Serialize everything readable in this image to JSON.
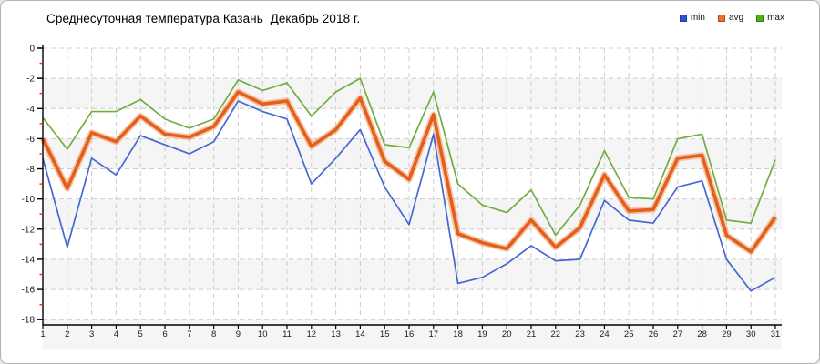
{
  "title": "Среднесуточная температура Казань  Декабрь 2018 г.",
  "legend": {
    "position": "top-right",
    "items": [
      {
        "id": "min",
        "label": "min",
        "swatch": "#2b50d9"
      },
      {
        "id": "avg",
        "label": "avg",
        "swatch": "#ea7322"
      },
      {
        "id": "max",
        "label": "max",
        "swatch": "#4ab410"
      }
    ]
  },
  "chart_data": {
    "type": "line",
    "title": "Среднесуточная температура Казань  Декабрь 2018 г.",
    "xlabel": "",
    "ylabel": "",
    "x": [
      1,
      2,
      3,
      4,
      5,
      6,
      7,
      8,
      9,
      10,
      11,
      12,
      13,
      14,
      15,
      16,
      17,
      18,
      19,
      20,
      21,
      22,
      23,
      24,
      25,
      26,
      27,
      28,
      29,
      30,
      31
    ],
    "ylim": [
      -18,
      0
    ],
    "ytick_step": 2,
    "y_tick_labels": [
      "0",
      "-2",
      "-4",
      "-6",
      "-8",
      "-10",
      "-12",
      "-14",
      "-16",
      "-18"
    ],
    "grid": "dashed-both-axes",
    "background_bands": "alternating 2-degree rows, light gray on odd rows",
    "legend_position": "top-right",
    "series": [
      {
        "name": "min",
        "color": "#4468d1",
        "values": [
          -7.3,
          -13.2,
          -7.3,
          -8.4,
          -5.8,
          -6.4,
          -7.0,
          -6.2,
          -3.5,
          -4.2,
          -4.7,
          -9.0,
          -7.3,
          -5.4,
          -9.2,
          -11.7,
          -5.7,
          -15.6,
          -15.2,
          -14.3,
          -13.1,
          -14.1,
          -14.0,
          -10.1,
          -11.4,
          -11.6,
          -9.2,
          -8.8,
          -14.0,
          -16.1,
          -15.2
        ]
      },
      {
        "name": "avg",
        "color": "#e25f1d",
        "halo": "#f6a26b",
        "values": [
          -6.0,
          -9.3,
          -5.6,
          -6.2,
          -4.5,
          -5.7,
          -5.9,
          -5.2,
          -2.9,
          -3.7,
          -3.5,
          -6.5,
          -5.4,
          -3.3,
          -7.5,
          -8.7,
          -4.4,
          -12.3,
          -12.9,
          -13.3,
          -11.4,
          -13.2,
          -11.9,
          -8.4,
          -10.8,
          -10.7,
          -7.3,
          -7.1,
          -12.4,
          -13.5,
          -11.2
        ]
      },
      {
        "name": "max",
        "color": "#6fae3f",
        "values": [
          -4.6,
          -6.7,
          -4.2,
          -4.2,
          -3.4,
          -4.7,
          -5.3,
          -4.7,
          -2.1,
          -2.8,
          -2.3,
          -4.5,
          -2.9,
          -2.0,
          -6.4,
          -6.6,
          -2.9,
          -9.0,
          -10.4,
          -10.9,
          -9.4,
          -12.4,
          -10.4,
          -6.8,
          -9.9,
          -10.0,
          -6.0,
          -5.7,
          -11.4,
          -11.6,
          -7.4
        ]
      }
    ],
    "colors": {
      "band": "#f5f5f5",
      "grid": "#cccccc",
      "axis": "#000000",
      "minor_tick": "#dd3311",
      "tick_label": "#1a1a1a"
    }
  }
}
